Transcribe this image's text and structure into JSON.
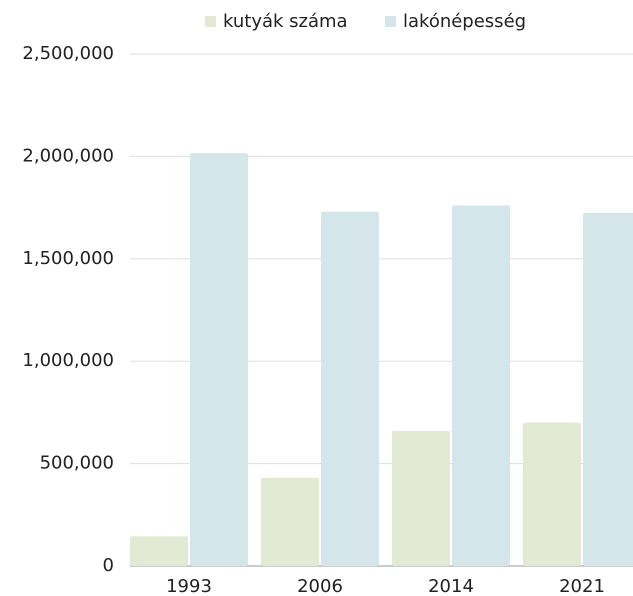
{
  "chart_data": {
    "type": "bar",
    "categories": [
      "1993",
      "2006",
      "2014",
      "2021"
    ],
    "series": [
      {
        "name": "kutyák száma",
        "color": "#e2ead3",
        "values": [
          145000,
          430000,
          660000,
          700000
        ]
      },
      {
        "name": "lakónépesség",
        "color": "#d5e6ea",
        "values": [
          2016000,
          1730000,
          1760000,
          1724000
        ]
      }
    ],
    "ylim": [
      0,
      2500000
    ],
    "yticks": [
      0,
      {
        "value": 500000,
        "label": "500,000"
      },
      {
        "value": 1000000,
        "label": "1,000,000"
      },
      {
        "value": 1500000,
        "label": "1,500,000"
      },
      {
        "value": 2000000,
        "label": "2,000,000"
      },
      {
        "value": 2500000,
        "label": "2,500,000"
      }
    ],
    "grid": true,
    "legend": "top"
  }
}
